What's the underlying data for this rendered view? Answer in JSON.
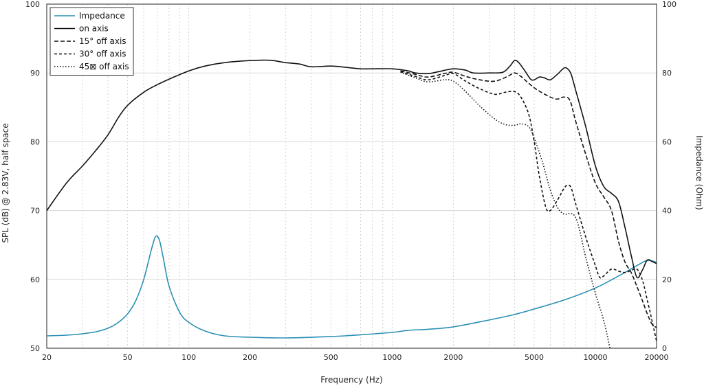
{
  "chart_data": {
    "type": "line",
    "x_scale": "log",
    "xlim": [
      20,
      20000
    ],
    "ylim_left": [
      50,
      100
    ],
    "ylim_right": [
      0,
      100
    ],
    "grid": "on (dotted minor verticals, solid major horizontals)",
    "legend_position": "top-left",
    "xlabel": "Frequency (Hz)",
    "ylabel_left": "SPL (dB) @ 2.83V, half space",
    "ylabel_right": "Impedance (Ohm)",
    "x_ticks": [
      {
        "v": 20,
        "label": "20"
      },
      {
        "v": 50,
        "label": "50"
      },
      {
        "v": 100,
        "label": "100"
      },
      {
        "v": 200,
        "label": "200"
      },
      {
        "v": 500,
        "label": "500"
      },
      {
        "v": 1000,
        "label": "1000"
      },
      {
        "v": 2000,
        "label": "2000"
      },
      {
        "v": 5000,
        "label": "5000"
      },
      {
        "v": 10000,
        "label": "10000"
      },
      {
        "v": 20000,
        "label": "20000"
      }
    ],
    "y_ticks_left": [
      "50",
      "60",
      "70",
      "80",
      "90",
      "100"
    ],
    "y_ticks_right": [
      "0",
      "20",
      "40",
      "60",
      "80",
      "100"
    ],
    "series": [
      {
        "name": "Impedance",
        "axis": "right",
        "color": "#2a8fb4",
        "dash": "solid",
        "points": [
          [
            20,
            3.6
          ],
          [
            25,
            3.8
          ],
          [
            30,
            4.2
          ],
          [
            35,
            4.8
          ],
          [
            40,
            5.8
          ],
          [
            45,
            7.5
          ],
          [
            50,
            10
          ],
          [
            55,
            14
          ],
          [
            60,
            20
          ],
          [
            65,
            28
          ],
          [
            68,
            32
          ],
          [
            70,
            32.5
          ],
          [
            72,
            31
          ],
          [
            75,
            26
          ],
          [
            80,
            18
          ],
          [
            90,
            10.5
          ],
          [
            100,
            7.5
          ],
          [
            120,
            5
          ],
          [
            150,
            3.6
          ],
          [
            200,
            3.2
          ],
          [
            300,
            3
          ],
          [
            500,
            3.4
          ],
          [
            700,
            3.9
          ],
          [
            1000,
            4.6
          ],
          [
            1200,
            5.2
          ],
          [
            1500,
            5.5
          ],
          [
            2000,
            6.2
          ],
          [
            3000,
            8.2
          ],
          [
            4000,
            9.8
          ],
          [
            5000,
            11.4
          ],
          [
            7000,
            14
          ],
          [
            10000,
            17.5
          ],
          [
            13000,
            21
          ],
          [
            16000,
            24
          ],
          [
            18000,
            25.5
          ],
          [
            20000,
            25
          ]
        ]
      },
      {
        "name": "on axis",
        "axis": "left",
        "color": "#111111",
        "dash": "solid",
        "points": [
          [
            20,
            70
          ],
          [
            25,
            74
          ],
          [
            30,
            76.5
          ],
          [
            35,
            78.8
          ],
          [
            40,
            81
          ],
          [
            45,
            83.5
          ],
          [
            50,
            85.3
          ],
          [
            60,
            87.2
          ],
          [
            70,
            88.3
          ],
          [
            80,
            89.1
          ],
          [
            100,
            90.3
          ],
          [
            120,
            91
          ],
          [
            150,
            91.5
          ],
          [
            200,
            91.8
          ],
          [
            250,
            91.85
          ],
          [
            300,
            91.5
          ],
          [
            350,
            91.3
          ],
          [
            400,
            90.9
          ],
          [
            500,
            91
          ],
          [
            600,
            90.8
          ],
          [
            700,
            90.6
          ],
          [
            800,
            90.6
          ],
          [
            1000,
            90.6
          ],
          [
            1200,
            90.3
          ],
          [
            1300,
            90
          ],
          [
            1500,
            89.9
          ],
          [
            1700,
            90.2
          ],
          [
            2000,
            90.6
          ],
          [
            2300,
            90.4
          ],
          [
            2500,
            90
          ],
          [
            3000,
            90
          ],
          [
            3500,
            90.1
          ],
          [
            3800,
            91
          ],
          [
            4000,
            91.8
          ],
          [
            4200,
            91.5
          ],
          [
            4500,
            90.3
          ],
          [
            4800,
            89.1
          ],
          [
            5000,
            89
          ],
          [
            5300,
            89.4
          ],
          [
            5600,
            89.3
          ],
          [
            6000,
            89
          ],
          [
            6500,
            89.8
          ],
          [
            7000,
            90.7
          ],
          [
            7300,
            90.6
          ],
          [
            7600,
            89.8
          ],
          [
            8000,
            87.5
          ],
          [
            9000,
            82
          ],
          [
            10000,
            76.5
          ],
          [
            11000,
            73.5
          ],
          [
            12000,
            72.5
          ],
          [
            13000,
            71.3
          ],
          [
            14000,
            67.5
          ],
          [
            15000,
            63.5
          ],
          [
            16000,
            60.3
          ],
          [
            17000,
            61.3
          ],
          [
            18000,
            62.8
          ],
          [
            19000,
            62.6
          ],
          [
            20000,
            62.3
          ]
        ]
      },
      {
        "name": "15° off axis",
        "axis": "left",
        "color": "#111111",
        "dash": "6,3",
        "points": [
          [
            1100,
            90.3
          ],
          [
            1300,
            89.8
          ],
          [
            1500,
            89.4
          ],
          [
            1800,
            89.9
          ],
          [
            2000,
            90.1
          ],
          [
            2300,
            89.5
          ],
          [
            2700,
            89
          ],
          [
            3200,
            88.8
          ],
          [
            3700,
            89.5
          ],
          [
            4000,
            90
          ],
          [
            4300,
            89.5
          ],
          [
            4700,
            88.5
          ],
          [
            5200,
            87.5
          ],
          [
            6000,
            86.5
          ],
          [
            6500,
            86.2
          ],
          [
            7000,
            86.5
          ],
          [
            7500,
            86
          ],
          [
            8000,
            83
          ],
          [
            9000,
            78
          ],
          [
            10000,
            74
          ],
          [
            11000,
            72
          ],
          [
            12000,
            70
          ],
          [
            13000,
            65.5
          ],
          [
            14000,
            62.5
          ],
          [
            15000,
            61
          ],
          [
            16000,
            59
          ],
          [
            17000,
            57
          ],
          [
            18000,
            55
          ],
          [
            19000,
            53.5
          ],
          [
            20000,
            53
          ]
        ]
      },
      {
        "name": "30° off axis",
        "axis": "left",
        "color": "#111111",
        "dash": "4,3",
        "points": [
          [
            1100,
            90.2
          ],
          [
            1300,
            89.5
          ],
          [
            1500,
            89
          ],
          [
            1800,
            89.6
          ],
          [
            2000,
            89.9
          ],
          [
            2300,
            88.8
          ],
          [
            2700,
            87.7
          ],
          [
            3200,
            86.9
          ],
          [
            3600,
            87.2
          ],
          [
            4000,
            87.3
          ],
          [
            4300,
            86.5
          ],
          [
            4700,
            84
          ],
          [
            5000,
            80
          ],
          [
            5300,
            75
          ],
          [
            5700,
            70.5
          ],
          [
            6000,
            70
          ],
          [
            6500,
            71.5
          ],
          [
            7000,
            73.2
          ],
          [
            7300,
            73.7
          ],
          [
            7600,
            73.3
          ],
          [
            8000,
            71
          ],
          [
            9000,
            66
          ],
          [
            10000,
            62
          ],
          [
            10500,
            60.3
          ],
          [
            11000,
            60.5
          ],
          [
            12000,
            61.5
          ],
          [
            13000,
            61.2
          ],
          [
            14000,
            61
          ],
          [
            15000,
            61.3
          ],
          [
            16000,
            61.5
          ],
          [
            17000,
            60
          ],
          [
            18000,
            57
          ],
          [
            19000,
            54
          ],
          [
            20000,
            51
          ]
        ]
      },
      {
        "name": "45 off axis",
        "axis": "left",
        "color": "#111111",
        "dash": "1.5,2.5",
        "points": [
          [
            1100,
            90.1
          ],
          [
            1300,
            89.3
          ],
          [
            1500,
            88.7
          ],
          [
            1800,
            89
          ],
          [
            2000,
            88.8
          ],
          [
            2300,
            87.3
          ],
          [
            2700,
            85.2
          ],
          [
            3200,
            83.3
          ],
          [
            3600,
            82.5
          ],
          [
            4000,
            82.4
          ],
          [
            4300,
            82.6
          ],
          [
            4700,
            82.2
          ],
          [
            5000,
            80.5
          ],
          [
            5500,
            77
          ],
          [
            6000,
            73
          ],
          [
            6500,
            70.5
          ],
          [
            7000,
            69.5
          ],
          [
            8000,
            69
          ],
          [
            9000,
            63
          ],
          [
            10000,
            58
          ],
          [
            11000,
            54
          ],
          [
            11800,
            50
          ]
        ]
      }
    ],
    "legend": [
      {
        "label": "Impedance",
        "color": "#2a8fb4",
        "dash": "solid"
      },
      {
        "label": "on axis",
        "color": "#111111",
        "dash": "solid"
      },
      {
        "label": "15° off axis",
        "color": "#111111",
        "dash": "6,3"
      },
      {
        "label": "30° off axis",
        "color": "#111111",
        "dash": "4,3"
      },
      {
        "label": "45⊠ off axis",
        "color": "#111111",
        "dash": "1.5,2.5"
      }
    ]
  }
}
